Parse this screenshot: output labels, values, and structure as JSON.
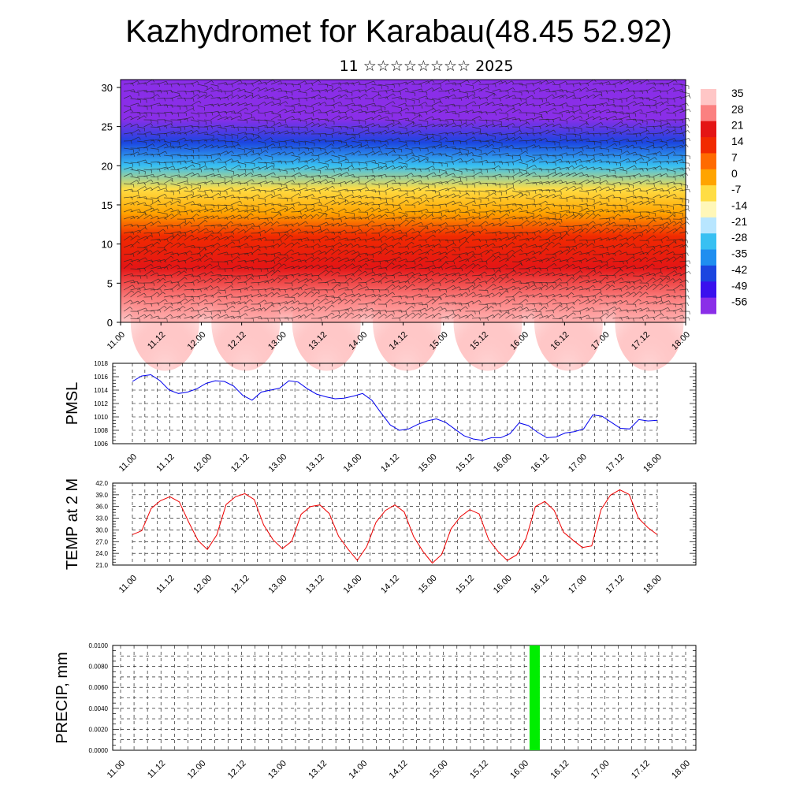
{
  "title": "Kazhydromet for Karabau(48.45 52.92)",
  "subtitle": "11 ☆☆☆☆☆☆☆☆ 2025",
  "time_labels": [
    "11.00",
    "11.12",
    "12.00",
    "12.12",
    "13.00",
    "13.12",
    "14.00",
    "14.12",
    "15.00",
    "15.12",
    "16.00",
    "16.12",
    "17.00",
    "17.12",
    "18.00"
  ],
  "colors": {
    "pmsl_line": "#0000ee",
    "temp_line": "#ee0000",
    "precip_bar": "#00ee00"
  },
  "chart_data": [
    {
      "type": "heatmap",
      "name": "temperature cross-section with wind barbs",
      "x": [
        "11.00",
        "11.12",
        "12.00",
        "12.12",
        "13.00",
        "13.12",
        "14.00",
        "14.12",
        "15.00",
        "15.12",
        "16.00",
        "16.12",
        "17.00",
        "17.12",
        "18.00"
      ],
      "ylim": [
        0,
        31
      ],
      "yticks": [
        0,
        5,
        10,
        15,
        20,
        25,
        30
      ],
      "colorbar": {
        "labels": [
          "35",
          "28",
          "21",
          "14",
          "7",
          "0",
          "-7",
          "-14",
          "-21",
          "-28",
          "-35",
          "-42",
          "-49",
          "-56"
        ],
        "colors": [
          "#ffc6c6",
          "#fb8080",
          "#e41515",
          "#f12a00",
          "#ff6a00",
          "#ffa400",
          "#ffdd44",
          "#fff7b8",
          "#b8e6ff",
          "#38c0f2",
          "#1f8ef0",
          "#1b45e0",
          "#3a10ee",
          "#8a2ee8"
        ]
      },
      "vertical_profile": [
        {
          "y": 0,
          "value": 35
        },
        {
          "y": 3,
          "value": 28
        },
        {
          "y": 7,
          "value": 21
        },
        {
          "y": 11,
          "value": 14
        },
        {
          "y": 14,
          "value": 0
        },
        {
          "y": 17,
          "value": -10
        },
        {
          "y": 20,
          "value": -28
        },
        {
          "y": 23,
          "value": -45
        },
        {
          "y": 26,
          "value": -56
        },
        {
          "y": 31,
          "value": -60
        }
      ]
    },
    {
      "type": "line",
      "ylabel": "PMSL",
      "ylim": [
        1006,
        1018
      ],
      "yticks": [
        "1006",
        "1008",
        "1010",
        "1012",
        "1014",
        "1016",
        "1018"
      ],
      "series": [
        {
          "values": [
            1015.3,
            1016.1,
            1016.3,
            1015.4,
            1014.0,
            1013.5,
            1013.7,
            1014.2,
            1015.0,
            1015.4,
            1015.3,
            1014.6,
            1013.2,
            1012.5,
            1013.7,
            1014.0,
            1014.3,
            1015.4,
            1015.2,
            1014.2,
            1013.4,
            1013.0,
            1012.7,
            1012.8,
            1013.1,
            1013.5,
            1012.5,
            1010.6,
            1008.8,
            1008.0,
            1008.2,
            1008.9,
            1009.4,
            1009.7,
            1009.2,
            1008.2,
            1007.2,
            1006.7,
            1006.5,
            1006.9,
            1006.9,
            1007.5,
            1009.1,
            1008.7,
            1007.7,
            1006.9,
            1007.0,
            1007.6,
            1007.8,
            1008.2,
            1010.3,
            1010.1,
            1009.2,
            1008.3,
            1008.2,
            1009.6,
            1009.4,
            1009.5
          ]
        }
      ]
    },
    {
      "type": "line",
      "ylabel": "TEMP at 2 M",
      "ylim": [
        21,
        42
      ],
      "yticks": [
        "21.0",
        "24.0",
        "27.0",
        "30.0",
        "33.0",
        "36.0",
        "39.0",
        "42.0"
      ],
      "series": [
        {
          "values": [
            28.8,
            29.8,
            35.5,
            37.5,
            38.5,
            37.2,
            32.0,
            27.3,
            25.0,
            28.7,
            36.5,
            38.5,
            39.3,
            37.8,
            31.3,
            27.5,
            25.2,
            27.1,
            34.0,
            36.0,
            36.4,
            34.2,
            28.4,
            25.1,
            22.2,
            25.7,
            32.0,
            35.0,
            36.4,
            34.6,
            28.3,
            24.5,
            21.5,
            23.7,
            30.3,
            33.4,
            35.2,
            34.1,
            27.6,
            24.5,
            22.2,
            23.6,
            27.8,
            36.0,
            37.3,
            35.0,
            29.4,
            27.4,
            25.5,
            25.9,
            35.2,
            38.9,
            40.3,
            39.1,
            33.0,
            30.6,
            28.8
          ]
        }
      ]
    },
    {
      "type": "bar",
      "ylabel": "PRECIP, mm",
      "ylim": [
        0,
        0.01
      ],
      "yticks": [
        "0.0000",
        "0.0020",
        "0.0040",
        "0.0060",
        "0.0080",
        "0.0100"
      ],
      "bars": [
        {
          "x": "16.03",
          "value": 0.01
        }
      ]
    }
  ]
}
